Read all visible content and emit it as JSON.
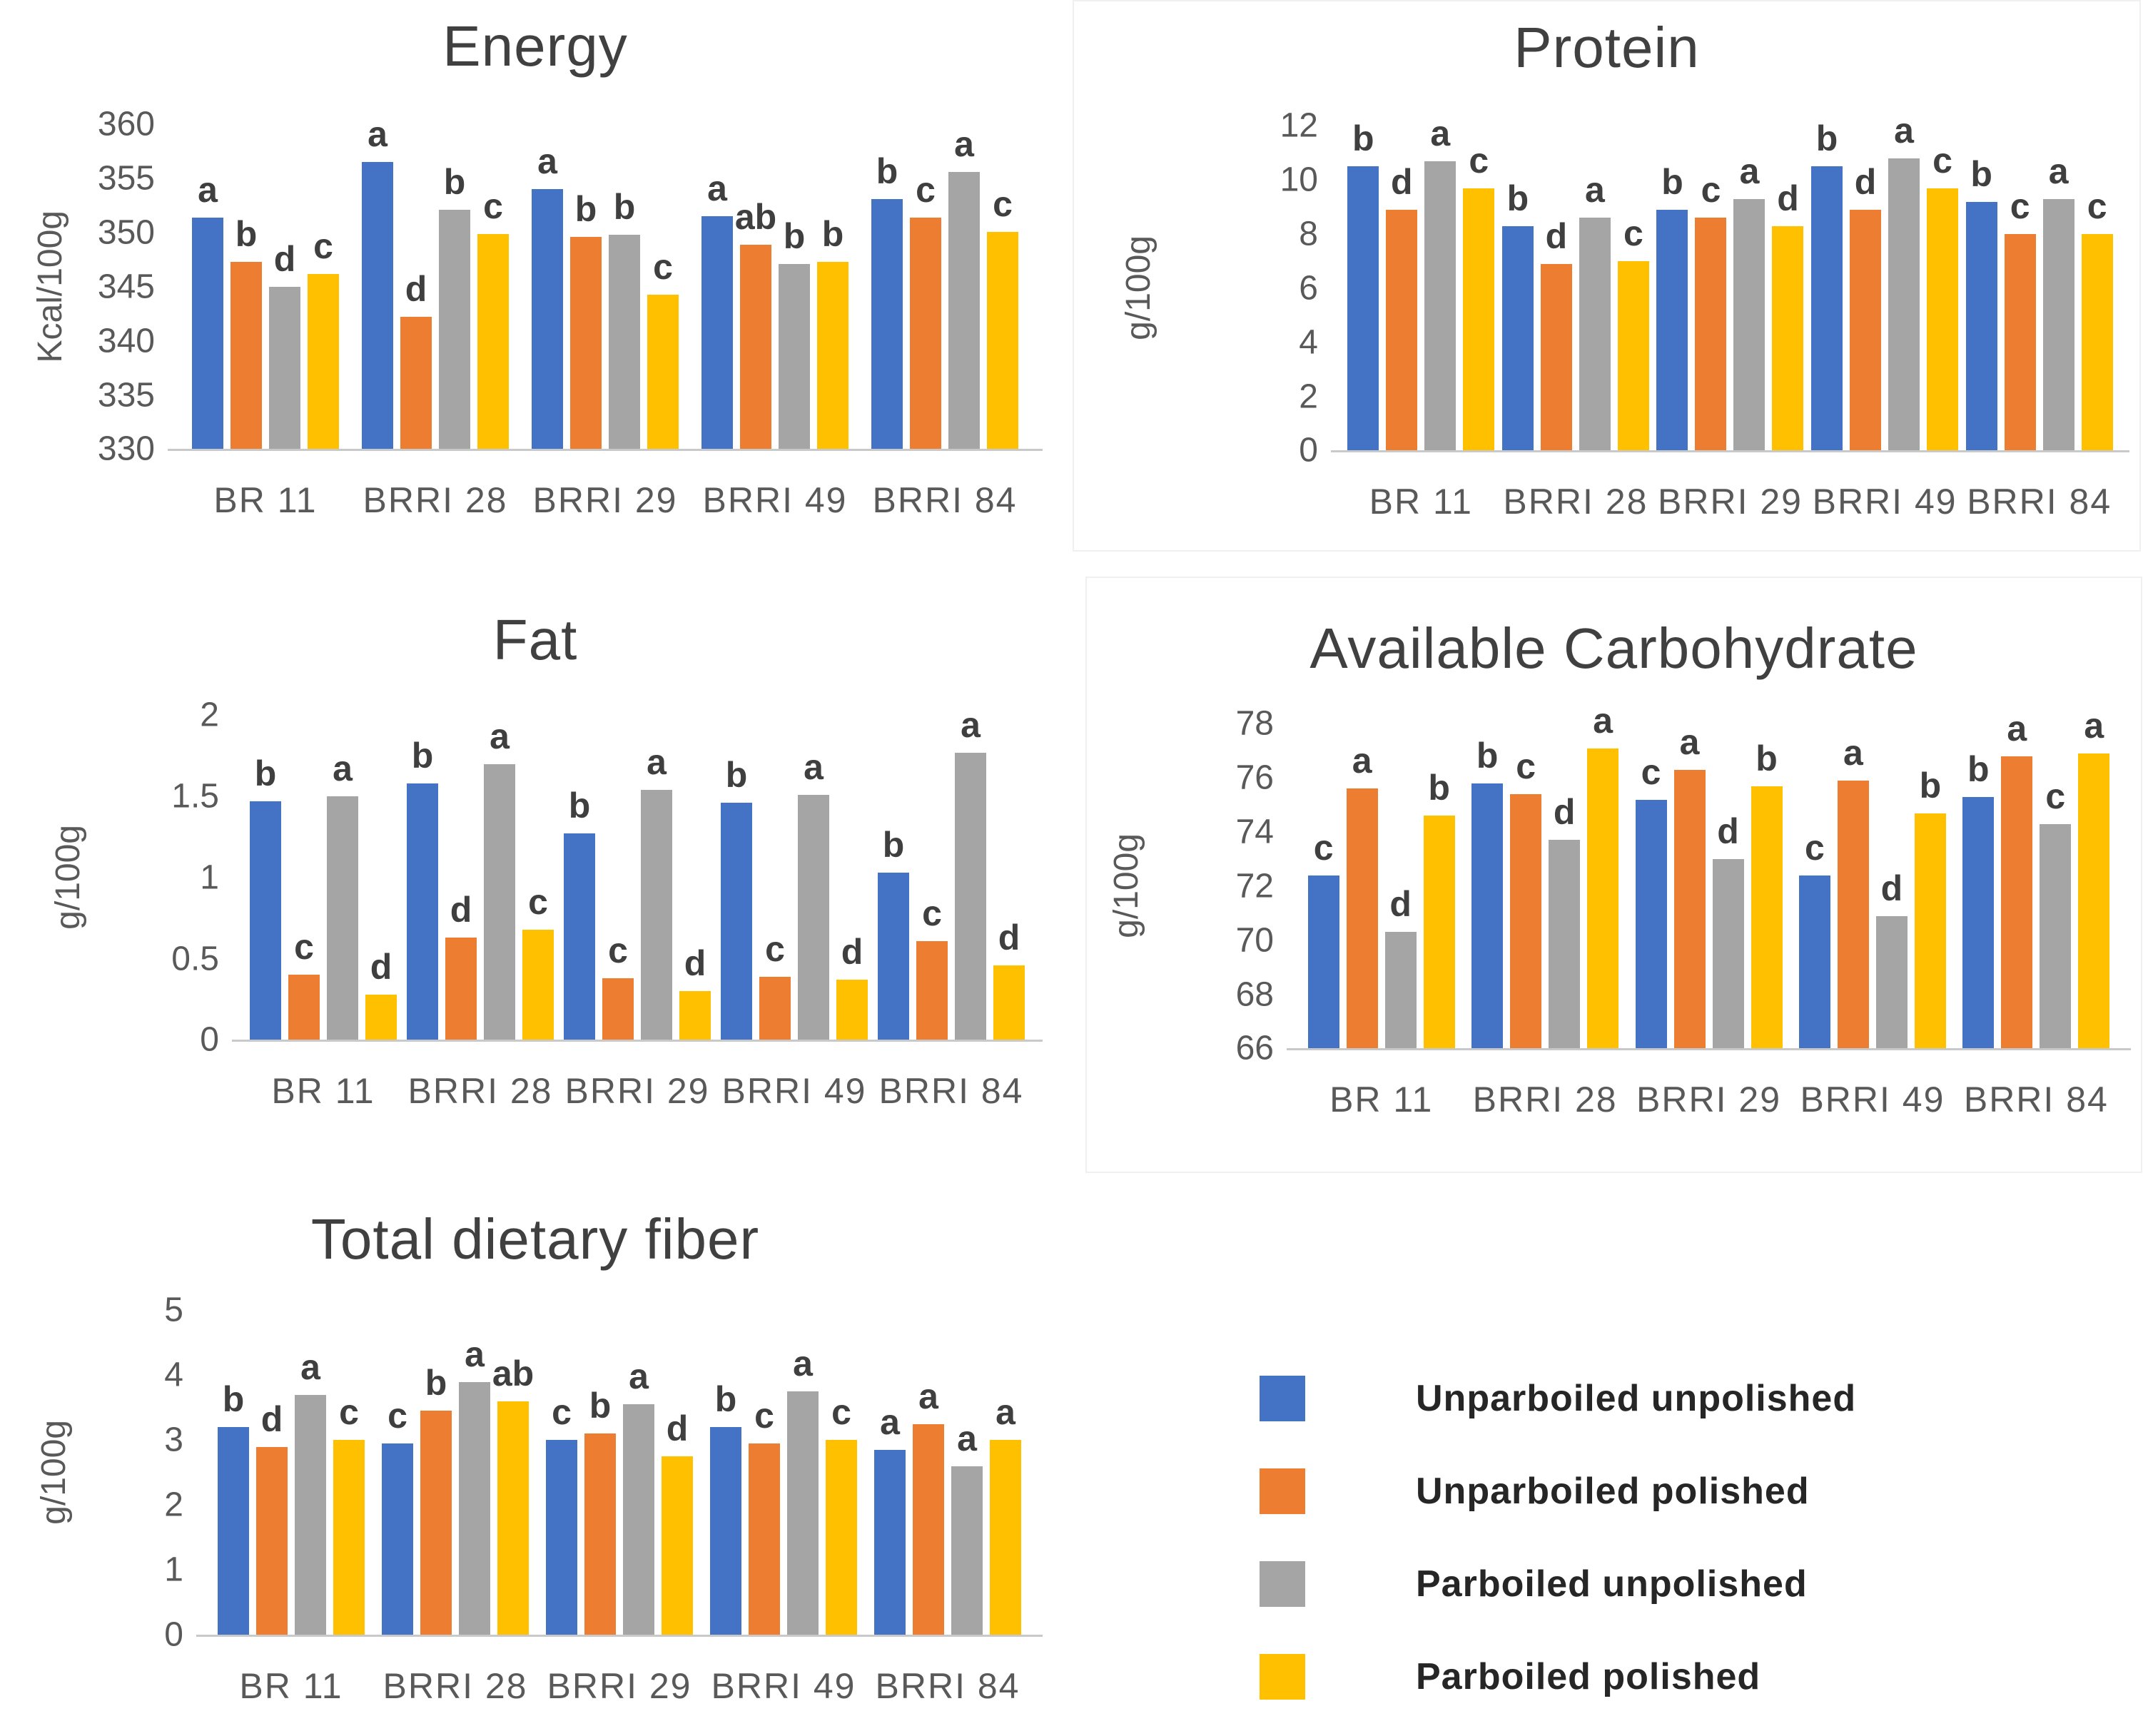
{
  "legend": {
    "items": [
      {
        "label": "Unparboiled unpolished",
        "color": "#4472C4"
      },
      {
        "label": "Unparboiled polished",
        "color": "#ED7D31"
      },
      {
        "label": "Parboiled unpolished",
        "color": "#A5A5A5"
      },
      {
        "label": "Parboiled polished",
        "color": "#FFC000"
      }
    ]
  },
  "chart_data": [
    {
      "id": "energy",
      "type": "bar",
      "title": "Energy",
      "ylabel": "Kcal/100g",
      "ylim": [
        330,
        360
      ],
      "ytick_step": 5,
      "grid": false,
      "categories": [
        "BR 11",
        "BRRI 28",
        "BRRI 29",
        "BRRI 49",
        "BRRI 84"
      ],
      "series": [
        {
          "name": "Unparboiled unpolished",
          "color": "#4472C4",
          "values": [
            351.4,
            356.5,
            354.0,
            351.5,
            353.1
          ],
          "letters": [
            "a",
            "a",
            "a",
            "a",
            "b"
          ]
        },
        {
          "name": "Unparboiled polished",
          "color": "#ED7D31",
          "values": [
            347.3,
            342.2,
            349.6,
            348.9,
            351.4
          ],
          "letters": [
            "b",
            "d",
            "b",
            "ab",
            "c"
          ]
        },
        {
          "name": "Parboiled unpolished",
          "color": "#A5A5A5",
          "values": [
            345.0,
            352.1,
            349.8,
            347.1,
            355.6
          ],
          "letters": [
            "d",
            "b",
            "b",
            "b",
            "a"
          ]
        },
        {
          "name": "Parboiled polished",
          "color": "#FFC000",
          "values": [
            346.2,
            349.9,
            344.3,
            347.3,
            350.1
          ],
          "letters": [
            "c",
            "c",
            "c",
            "b",
            "c"
          ]
        }
      ]
    },
    {
      "id": "protein",
      "type": "bar",
      "title": "Protein",
      "ylabel": "g/100g",
      "ylim": [
        0,
        12
      ],
      "ytick_step": 2,
      "grid": false,
      "categories": [
        "BR 11",
        "BRRI 28",
        "BRRI 29",
        "BRRI 49",
        "BRRI 84"
      ],
      "series": [
        {
          "name": "Unparboiled unpolished",
          "color": "#4472C4",
          "values": [
            10.5,
            8.3,
            8.9,
            10.5,
            9.2
          ],
          "letters": [
            "b",
            "b",
            "b",
            "b",
            "b"
          ]
        },
        {
          "name": "Unparboiled polished",
          "color": "#ED7D31",
          "values": [
            8.9,
            6.9,
            8.6,
            8.9,
            8.0
          ],
          "letters": [
            "d",
            "d",
            "c",
            "d",
            "c"
          ]
        },
        {
          "name": "Parboiled unpolished",
          "color": "#A5A5A5",
          "values": [
            10.7,
            8.6,
            9.3,
            10.8,
            9.3
          ],
          "letters": [
            "a",
            "a",
            "a",
            "a",
            "a"
          ]
        },
        {
          "name": "Parboiled polished",
          "color": "#FFC000",
          "values": [
            9.7,
            7.0,
            8.3,
            9.7,
            8.0
          ],
          "letters": [
            "c",
            "c",
            "d",
            "c",
            "c"
          ]
        }
      ]
    },
    {
      "id": "fat",
      "type": "bar",
      "title": "Fat",
      "ylabel": "g/100g",
      "ylim": [
        0,
        2
      ],
      "ytick_step": 0.5,
      "grid": false,
      "categories": [
        "BR 11",
        "BRRI 28",
        "BRRI 29",
        "BRRI 49",
        "BRRI 84"
      ],
      "series": [
        {
          "name": "Unparboiled unpolished",
          "color": "#4472C4",
          "values": [
            1.47,
            1.58,
            1.27,
            1.46,
            1.03
          ],
          "letters": [
            "b",
            "b",
            "b",
            "b",
            "b"
          ]
        },
        {
          "name": "Unparboiled polished",
          "color": "#ED7D31",
          "values": [
            0.4,
            0.63,
            0.38,
            0.39,
            0.61
          ],
          "letters": [
            "c",
            "d",
            "c",
            "c",
            "c"
          ]
        },
        {
          "name": "Parboiled unpolished",
          "color": "#A5A5A5",
          "values": [
            1.5,
            1.7,
            1.54,
            1.51,
            1.77
          ],
          "letters": [
            "a",
            "a",
            "a",
            "a",
            "a"
          ]
        },
        {
          "name": "Parboiled polished",
          "color": "#FFC000",
          "values": [
            0.28,
            0.68,
            0.3,
            0.37,
            0.46
          ],
          "letters": [
            "d",
            "c",
            "d",
            "d",
            "d"
          ]
        }
      ]
    },
    {
      "id": "carbohydrate",
      "type": "bar",
      "title": "Available Carbohydrate",
      "ylabel": "g/100g",
      "ylim": [
        66,
        78
      ],
      "ytick_step": 2,
      "grid": false,
      "categories": [
        "BR 11",
        "BRRI 28",
        "BRRI 29",
        "BRRI 49",
        "BRRI 84"
      ],
      "series": [
        {
          "name": "Unparboiled unpolished",
          "color": "#4472C4",
          "values": [
            72.4,
            75.8,
            75.2,
            72.4,
            75.3
          ],
          "letters": [
            "c",
            "b",
            "c",
            "c",
            "b"
          ]
        },
        {
          "name": "Unparboiled polished",
          "color": "#ED7D31",
          "values": [
            75.6,
            75.4,
            76.3,
            75.9,
            76.8
          ],
          "letters": [
            "a",
            "c",
            "a",
            "a",
            "a"
          ]
        },
        {
          "name": "Parboiled unpolished",
          "color": "#A5A5A5",
          "values": [
            70.3,
            73.7,
            73.0,
            70.9,
            74.3
          ],
          "letters": [
            "d",
            "d",
            "d",
            "d",
            "c"
          ]
        },
        {
          "name": "Parboiled polished",
          "color": "#FFC000",
          "values": [
            74.6,
            77.1,
            75.7,
            74.7,
            76.9
          ],
          "letters": [
            "b",
            "a",
            "b",
            "b",
            "a"
          ]
        }
      ]
    },
    {
      "id": "fiber",
      "type": "bar",
      "title": "Total dietary fiber",
      "ylabel": "g/100g",
      "ylim": [
        0,
        5
      ],
      "ytick_step": 1,
      "grid": false,
      "categories": [
        "BR 11",
        "BRRI 28",
        "BRRI 29",
        "BRRI 49",
        "BRRI 84"
      ],
      "series": [
        {
          "name": "Unparboiled unpolished",
          "color": "#4472C4",
          "values": [
            3.2,
            2.95,
            3.0,
            3.2,
            2.85
          ],
          "letters": [
            "b",
            "c",
            "c",
            "b",
            "a"
          ]
        },
        {
          "name": "Unparboiled polished",
          "color": "#ED7D31",
          "values": [
            2.9,
            3.45,
            3.1,
            2.95,
            3.25
          ],
          "letters": [
            "d",
            "b",
            "b",
            "c",
            "a"
          ]
        },
        {
          "name": "Parboiled unpolished",
          "color": "#A5A5A5",
          "values": [
            3.7,
            3.9,
            3.55,
            3.75,
            2.6
          ],
          "letters": [
            "a",
            "a",
            "a",
            "a",
            "a"
          ]
        },
        {
          "name": "Parboiled polished",
          "color": "#FFC000",
          "values": [
            3.0,
            3.6,
            2.75,
            3.0,
            3.0
          ],
          "letters": [
            "c",
            "ab",
            "d",
            "c",
            "a"
          ]
        }
      ]
    }
  ]
}
